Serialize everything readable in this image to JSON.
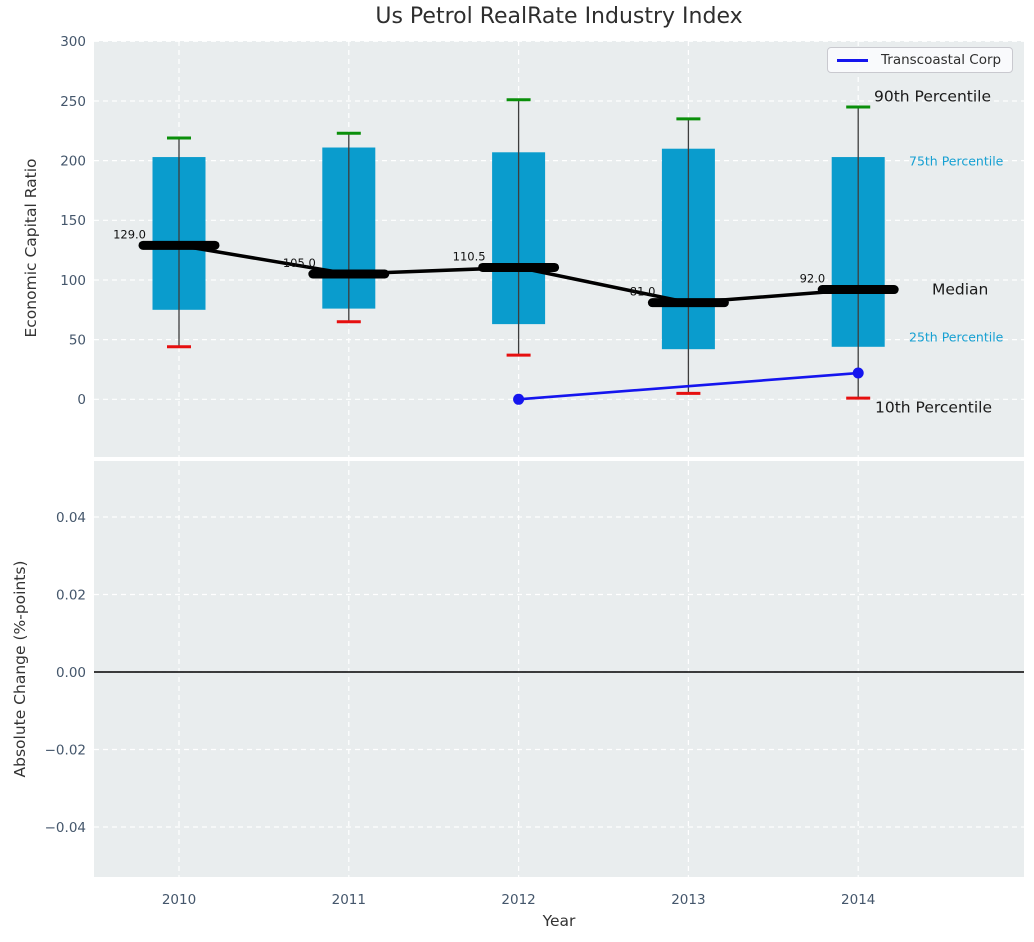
{
  "colors": {
    "box_fill": "#0a9ccd",
    "p90_cap": "#0a8f0a",
    "p10_cap": "#e60f0f",
    "median_line": "#000000",
    "company_line": "#1515ee",
    "cyan_label": "#16a0d2",
    "axes_bg": "#e9edee",
    "grid": "#ffffff",
    "tick_label": "#44566b",
    "text": "#333333"
  },
  "chart_data": [
    {
      "type": "box-percentile",
      "title": "Us Petrol RealRate Industry Index",
      "ylabel": "Economic Capital Ratio",
      "categories": [
        2010,
        2011,
        2012,
        2013,
        2014
      ],
      "percentiles": {
        "p90": [
          219,
          223,
          251,
          235,
          245
        ],
        "p75": [
          203,
          211,
          207,
          210,
          203
        ],
        "median": [
          129,
          105,
          110.5,
          81,
          92
        ],
        "p25": [
          75,
          76,
          63,
          42,
          44
        ],
        "p10": [
          44,
          65,
          37,
          5,
          1
        ]
      },
      "median_labels": [
        "129.0",
        "105.0",
        "110.5",
        "81.0",
        "92.0"
      ],
      "series": [
        {
          "name": "Transcoastal Corp",
          "x": [
            2012,
            2014
          ],
          "values": [
            0,
            22
          ]
        }
      ],
      "annotations": [
        "90th Percentile",
        "75th Percentile",
        "Median",
        "25th Percentile",
        "10th Percentile"
      ],
      "yticks": {
        "values": [
          300,
          250,
          200,
          150,
          100,
          50,
          0
        ],
        "labels": [
          "300",
          "250",
          "200",
          "150",
          "100",
          "50",
          "0"
        ]
      },
      "ylim": [
        -49,
        300
      ],
      "xlim": [
        2009.5,
        2015
      ],
      "grid": "dashed-white",
      "legend_position": "upper right"
    },
    {
      "type": "line",
      "ylabel": "Absolute Change (%-points)",
      "xlabel": "Year",
      "categories": [
        2010,
        2011,
        2012,
        2013,
        2014
      ],
      "xtick_labels": [
        "2010",
        "2011",
        "2012",
        "2013",
        "2014"
      ],
      "series": [],
      "zero_line": 0.0,
      "yticks": {
        "values": [
          0.04,
          0.02,
          0,
          -0.02,
          -0.04
        ],
        "labels": [
          "0.04",
          "0.02",
          "0.00",
          "−0.02",
          "−0.04"
        ]
      },
      "ylim": [
        -0.053,
        0.0545
      ],
      "grid": "dashed-white"
    }
  ]
}
